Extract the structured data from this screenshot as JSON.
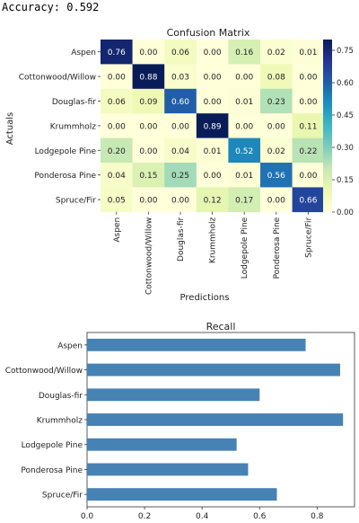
{
  "accuracy_text": "Accuracy: 0.592",
  "chart_data": [
    {
      "type": "heatmap",
      "title": "Confusion Matrix",
      "xlabel": "Predictions",
      "ylabel": "Actuals",
      "x_categories": [
        "Aspen",
        "Cottonwood/Willow",
        "Douglas-fir",
        "Krummholz",
        "Lodgepole Pine",
        "Ponderosa Pine",
        "Spruce/Fir"
      ],
      "y_categories": [
        "Aspen",
        "Cottonwood/Willow",
        "Douglas-fir",
        "Krummholz",
        "Lodgepole Pine",
        "Ponderosa Pine",
        "Spruce/Fir"
      ],
      "values": [
        [
          0.76,
          0.0,
          0.06,
          0.0,
          0.16,
          0.02,
          0.01
        ],
        [
          0.0,
          0.88,
          0.03,
          0.0,
          0.0,
          0.08,
          0.0
        ],
        [
          0.06,
          0.09,
          0.6,
          0.0,
          0.01,
          0.23,
          0.0
        ],
        [
          0.0,
          0.0,
          0.0,
          0.89,
          0.0,
          0.0,
          0.11
        ],
        [
          0.2,
          0.0,
          0.04,
          0.01,
          0.52,
          0.02,
          0.22
        ],
        [
          0.04,
          0.15,
          0.25,
          0.0,
          0.01,
          0.56,
          0.0
        ],
        [
          0.05,
          0.0,
          0.0,
          0.12,
          0.17,
          0.0,
          0.66
        ]
      ],
      "value_labels": [
        [
          "0.76",
          "0.00",
          "0.06",
          "0.00",
          "0.16",
          "0.02",
          "0.01"
        ],
        [
          "0.00",
          "0.88",
          "0.03",
          "0.00",
          "0.00",
          "0.08",
          "0.00"
        ],
        [
          "0.06",
          "0.09",
          "0.60",
          "0.00",
          "0.01",
          "0.23",
          "0.00"
        ],
        [
          "0.00",
          "0.00",
          "0.00",
          "0.89",
          "0.00",
          "0.00",
          "0.11"
        ],
        [
          "0.20",
          "0.00",
          "0.04",
          "0.01",
          "0.52",
          "0.02",
          "0.22"
        ],
        [
          "0.04",
          "0.15",
          "0.25",
          "0.00",
          "0.01",
          "0.56",
          "0.00"
        ],
        [
          "0.05",
          "0.00",
          "0.00",
          "0.12",
          "0.17",
          "0.00",
          "0.66"
        ]
      ],
      "colorbar": {
        "range": [
          0,
          0.8
        ],
        "ticks": [
          0.0,
          0.15,
          0.3,
          0.45,
          0.6,
          0.75
        ],
        "tick_labels": [
          "0.00",
          "0.15",
          "0.30",
          "0.45",
          "0.60",
          "0.75"
        ],
        "colormap": "YlGnBu"
      }
    },
    {
      "type": "bar",
      "orientation": "horizontal",
      "title": "Recall",
      "categories": [
        "Aspen",
        "Cottonwood/Willow",
        "Douglas-fir",
        "Krummholz",
        "Lodgepole Pine",
        "Ponderosa Pine",
        "Spruce/Fir"
      ],
      "values": [
        0.76,
        0.88,
        0.6,
        0.89,
        0.52,
        0.56,
        0.66
      ],
      "xlim": [
        0,
        0.93
      ],
      "x_ticks": [
        0.0,
        0.2,
        0.4,
        0.6,
        0.8
      ],
      "x_tick_labels": [
        "0.0",
        "0.2",
        "0.4",
        "0.6",
        "0.8"
      ],
      "bar_color": "#4682b4",
      "grid": false
    }
  ]
}
